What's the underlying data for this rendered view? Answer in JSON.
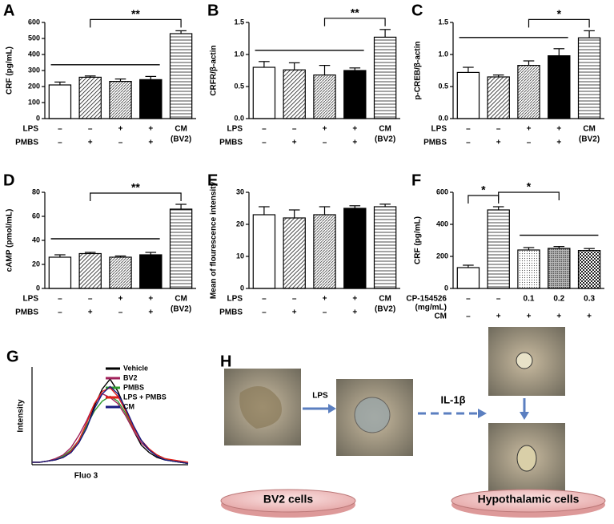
{
  "chart_data": [
    {
      "type": "bar",
      "panel_label": "A",
      "ylabel": "CRF (pg/mL)",
      "ylim": [
        0,
        600
      ],
      "yticks": [
        0,
        100,
        200,
        300,
        400,
        500,
        600
      ],
      "values": [
        210,
        258,
        232,
        243,
        530
      ],
      "errors": [
        18,
        8,
        15,
        20,
        18
      ],
      "bar_styles": [
        "white",
        "diagonal",
        "diagonal2",
        "black",
        "horizontal"
      ],
      "condition_rows": [
        {
          "name": "LPS",
          "marks": [
            "–",
            "–",
            "+",
            "+",
            null
          ]
        },
        {
          "name": "PMBS",
          "marks": [
            "–",
            "+",
            "–",
            "+",
            null
          ]
        }
      ],
      "extra_label": [
        "CM",
        "(BV2)"
      ],
      "brackets": [
        {
          "label": "**",
          "from": 1,
          "to": 4
        }
      ],
      "group_line": {
        "from": 0,
        "to": 3
      }
    },
    {
      "type": "bar",
      "panel_label": "B",
      "ylabel": "CRFR/β-actin",
      "ylim": [
        0,
        1.5
      ],
      "yticks": [
        {
          "value": 0,
          "label": "0.0"
        },
        0.5,
        {
          "value": 1,
          "label": "1.0"
        },
        1.5
      ],
      "values": [
        0.8,
        0.76,
        0.68,
        0.75,
        1.27
      ],
      "errors": [
        0.09,
        0.11,
        0.15,
        0.04,
        0.12
      ],
      "bar_styles": [
        "white",
        "diagonal",
        "diagonal2",
        "black",
        "horizontal"
      ],
      "condition_rows": [
        {
          "name": "LPS",
          "marks": [
            "–",
            "–",
            "+",
            "+",
            null
          ]
        },
        {
          "name": "PMBS",
          "marks": [
            "–",
            "+",
            "–",
            "+",
            null
          ]
        }
      ],
      "extra_label": [
        "CM",
        "(BV2)"
      ],
      "brackets": [
        {
          "label": "**",
          "from": 2,
          "to": 4
        }
      ],
      "group_line": {
        "from": 0,
        "to": 3
      }
    },
    {
      "type": "bar",
      "panel_label": "C",
      "ylabel": "p-CREB/β-actin",
      "ylim": [
        0,
        1.5
      ],
      "yticks": [
        {
          "value": 0,
          "label": "0.0"
        },
        0.5,
        {
          "value": 1,
          "label": "1.0"
        },
        1.5
      ],
      "values": [
        0.72,
        0.65,
        0.83,
        0.98,
        1.26
      ],
      "errors": [
        0.08,
        0.03,
        0.07,
        0.11,
        0.11
      ],
      "bar_styles": [
        "white",
        "diagonal",
        "diagonal2",
        "black",
        "horizontal"
      ],
      "condition_rows": [
        {
          "name": "LPS",
          "marks": [
            "–",
            "–",
            "+",
            "+",
            null
          ]
        },
        {
          "name": "PMBS",
          "marks": [
            "–",
            "+",
            "–",
            "+",
            null
          ]
        }
      ],
      "extra_label": [
        "CM",
        "(BV2)"
      ],
      "brackets": [
        {
          "label": "*",
          "from": 2,
          "to": 4
        }
      ],
      "group_line": {
        "from": 0,
        "to": 3
      }
    },
    {
      "type": "bar",
      "panel_label": "D",
      "ylabel": "cAMP (pmol/mL)",
      "ylim": [
        0,
        80
      ],
      "yticks": [
        0,
        20,
        40,
        60,
        80
      ],
      "values": [
        26,
        29,
        26,
        28,
        66
      ],
      "errors": [
        2,
        1,
        1,
        2,
        4
      ],
      "bar_styles": [
        "white",
        "diagonal",
        "diagonal2",
        "black",
        "horizontal"
      ],
      "condition_rows": [
        {
          "name": "LPS",
          "marks": [
            "–",
            "–",
            "+",
            "+",
            null
          ]
        },
        {
          "name": "PMBS",
          "marks": [
            "–",
            "+",
            "–",
            "+",
            null
          ]
        }
      ],
      "extra_label": [
        "CM",
        "(BV2)"
      ],
      "brackets": [
        {
          "label": "**",
          "from": 1,
          "to": 4
        }
      ],
      "group_line": {
        "from": 0,
        "to": 3
      }
    },
    {
      "type": "bar",
      "panel_label": "E",
      "ylabel": "Mean of flourescence intensity",
      "ylim": [
        0,
        30
      ],
      "yticks": [
        0,
        10,
        20,
        30
      ],
      "values": [
        23,
        22,
        23,
        25,
        25.5
      ],
      "errors": [
        2.5,
        2.5,
        2.5,
        0.8,
        0.8
      ],
      "bar_styles": [
        "white",
        "diagonal",
        "diagonal2",
        "black",
        "horizontal"
      ],
      "condition_rows": [
        {
          "name": "LPS",
          "marks": [
            "–",
            "–",
            "+",
            "+",
            null
          ]
        },
        {
          "name": "PMBS",
          "marks": [
            "–",
            "+",
            "–",
            "+",
            null
          ]
        }
      ],
      "extra_label": [
        "CM",
        "(BV2)"
      ]
    },
    {
      "type": "bar",
      "panel_label": "F",
      "ylabel": "CRF (pg/mL)",
      "ylim": [
        0,
        600
      ],
      "yticks": [
        0,
        200,
        400,
        600
      ],
      "values": [
        130,
        490,
        240,
        250,
        237
      ],
      "errors": [
        15,
        20,
        15,
        12,
        12
      ],
      "bar_styles": [
        "white",
        "horizontal",
        "dots",
        "dots2",
        "checker"
      ],
      "condition_rows": [
        {
          "name": "CP-154526",
          "unit": "(mg/mL)",
          "marks": [
            "–",
            "–",
            "0.1",
            "0.2",
            "0.3"
          ]
        },
        {
          "name": "CM",
          "marks": [
            "–",
            "+",
            "+",
            "+",
            "+"
          ]
        }
      ],
      "brackets": [
        {
          "label": "*",
          "from": 0,
          "to": 1
        },
        {
          "label": "*",
          "from": 1,
          "to": 3
        }
      ],
      "group_line": {
        "from": 2,
        "to": 4
      }
    },
    {
      "type": "line",
      "panel_label": "G",
      "xlabel": "Fluo 3",
      "ylabel": "Intensity",
      "xlim": [
        0,
        20
      ],
      "ylim": [
        0,
        80
      ],
      "x": [
        0,
        1,
        2,
        3,
        4,
        5,
        6,
        7,
        8,
        9,
        10,
        11,
        12,
        13,
        14,
        15,
        16,
        17,
        18,
        19,
        20
      ],
      "series": [
        {
          "name": "Vehicle",
          "color": "#000000",
          "values": [
            2,
            2,
            3,
            4,
            6,
            10,
            18,
            30,
            48,
            62,
            70,
            60,
            45,
            28,
            16,
            10,
            6,
            4,
            3,
            2,
            1
          ]
        },
        {
          "name": "BV2",
          "color": "#a0205a",
          "values": [
            2,
            2,
            3,
            5,
            8,
            14,
            24,
            36,
            50,
            58,
            55,
            50,
            40,
            28,
            18,
            12,
            8,
            5,
            3,
            2,
            1
          ]
        },
        {
          "name": "PMBS",
          "color": "#2e9a2e",
          "values": [
            2,
            2,
            3,
            4,
            7,
            12,
            20,
            32,
            44,
            52,
            56,
            52,
            42,
            30,
            20,
            12,
            8,
            5,
            3,
            2,
            1
          ]
        },
        {
          "name": "LPS + PMBS",
          "color": "#e0201a",
          "values": [
            2,
            2,
            3,
            4,
            6,
            11,
            20,
            34,
            50,
            60,
            63,
            56,
            44,
            30,
            20,
            13,
            8,
            5,
            4,
            3,
            2
          ]
        },
        {
          "name": "CM",
          "color": "#1a1a80",
          "values": [
            2,
            2,
            3,
            4,
            6,
            10,
            18,
            30,
            46,
            58,
            64,
            58,
            46,
            32,
            20,
            12,
            7,
            4,
            3,
            2,
            1
          ]
        }
      ]
    }
  ],
  "diagram": {
    "label": "H",
    "arrow_1": "LPS",
    "arrow_2": "IL-1β",
    "dish_1": "BV2 cells",
    "dish_2": "Hypothalamic cells"
  }
}
